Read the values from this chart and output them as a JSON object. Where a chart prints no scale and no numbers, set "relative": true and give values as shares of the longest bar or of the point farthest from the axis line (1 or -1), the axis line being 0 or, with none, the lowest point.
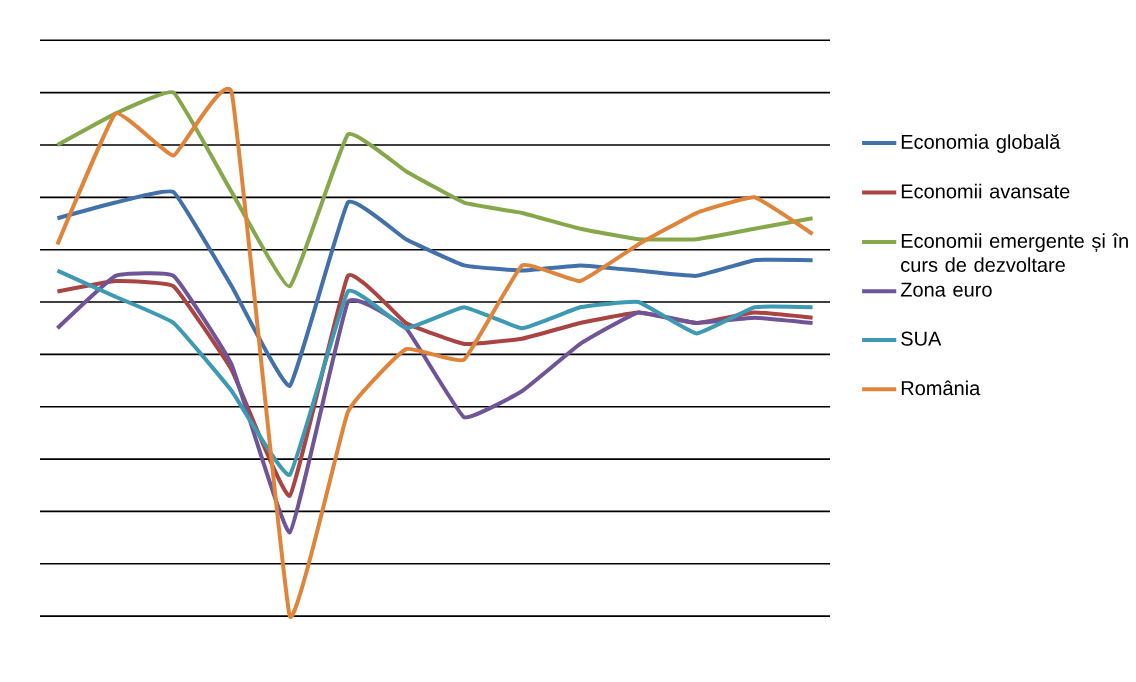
{
  "chart_data": {
    "type": "line",
    "relative": true,
    "grid": "y",
    "legend": "right",
    "marker": "none",
    "line_style": "solid",
    "categories": [
      null,
      null,
      null,
      null,
      null,
      null,
      null,
      null,
      null,
      null,
      null,
      null,
      null,
      null
    ],
    "series": [
      {
        "name": "Economia globală",
        "color": "#4170aa",
        "values": [
          0.76,
          0.79,
          0.81,
          0.63,
          0.44,
          0.79,
          0.72,
          0.67,
          0.66,
          0.67,
          0.66,
          0.65,
          0.68,
          0.68
        ]
      },
      {
        "name": "Economii avansate",
        "color": "#a94442",
        "values": [
          0.62,
          0.64,
          0.63,
          0.47,
          0.23,
          0.65,
          0.56,
          0.52,
          0.53,
          0.56,
          0.58,
          0.56,
          0.58,
          0.57
        ]
      },
      {
        "name": "Economii emergente și în curs de dezvoltare",
        "color": "#86a84b",
        "values": [
          0.9,
          0.96,
          1.0,
          0.81,
          0.63,
          0.92,
          0.85,
          0.79,
          0.77,
          0.74,
          0.72,
          0.72,
          0.74,
          0.76
        ]
      },
      {
        "name": "Zona euro",
        "color": "#6f5597",
        "values": [
          0.55,
          0.65,
          0.65,
          0.48,
          0.16,
          0.6,
          0.55,
          0.38,
          0.43,
          0.52,
          0.58,
          0.56,
          0.57,
          0.56
        ]
      },
      {
        "name": "SUA",
        "color": "#3d9ab2",
        "values": [
          0.66,
          0.61,
          0.56,
          0.43,
          0.27,
          0.62,
          0.55,
          0.59,
          0.55,
          0.59,
          0.6,
          0.54,
          0.59,
          0.59
        ]
      },
      {
        "name": "România",
        "color": "#e0843a",
        "values": [
          0.71,
          0.96,
          0.88,
          1.0,
          0.0,
          0.39,
          0.51,
          0.49,
          0.67,
          0.64,
          0.71,
          0.77,
          0.8,
          0.73
        ]
      }
    ]
  }
}
